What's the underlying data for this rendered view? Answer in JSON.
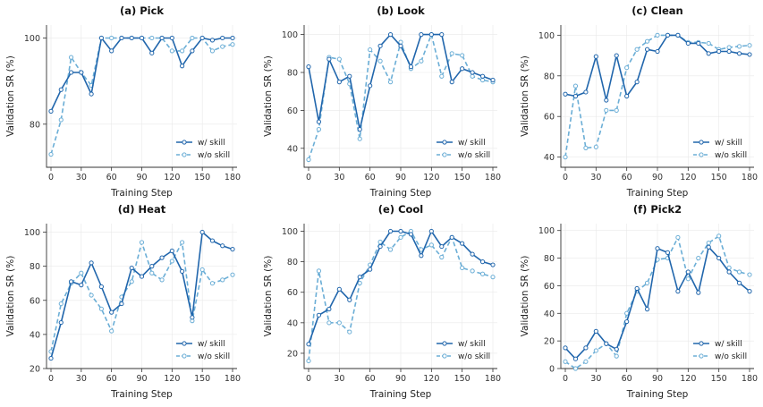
{
  "colors": {
    "with_skill": "#2166ac",
    "without_skill": "#6baed6"
  },
  "chart_data": [
    {
      "type": "line",
      "title": "(a)  Pick",
      "xlabel": "Training Step",
      "ylabel": "Validation SR (%)",
      "xlim": [
        0,
        180
      ],
      "ylim": [
        70,
        103
      ],
      "xticks": [
        0,
        30,
        60,
        90,
        120,
        150,
        180
      ],
      "yticks": [
        80,
        100
      ],
      "grid": true,
      "legend_position": "lower-right",
      "x": [
        0,
        10,
        20,
        30,
        40,
        50,
        60,
        70,
        80,
        90,
        100,
        110,
        120,
        130,
        140,
        150,
        160,
        170,
        180
      ],
      "series": [
        {
          "name": "w/ skill",
          "style": "solid",
          "values": [
            83,
            88,
            92,
            92,
            87,
            100,
            97,
            100,
            100,
            100,
            96.5,
            100,
            100,
            93.5,
            97,
            100,
            99.5,
            100,
            100
          ]
        },
        {
          "name": "w/o skill",
          "style": "dashed",
          "values": [
            73,
            81,
            95.5,
            92,
            89,
            100,
            100,
            100,
            100,
            100,
            100,
            100,
            97,
            97,
            100,
            100,
            97,
            98,
            98.5
          ]
        }
      ]
    },
    {
      "type": "line",
      "title": "(b)  Look",
      "xlabel": "Training Step",
      "ylabel": "Validation SR (%)",
      "xlim": [
        0,
        180
      ],
      "ylim": [
        30,
        105
      ],
      "xticks": [
        0,
        30,
        60,
        90,
        120,
        150,
        180
      ],
      "yticks": [
        40,
        60,
        80,
        100
      ],
      "grid": true,
      "legend_position": "lower-right",
      "x": [
        0,
        10,
        20,
        30,
        40,
        50,
        60,
        70,
        80,
        90,
        100,
        110,
        120,
        130,
        140,
        150,
        160,
        170,
        180
      ],
      "series": [
        {
          "name": "w/ skill",
          "style": "solid",
          "values": [
            83,
            54,
            87,
            75,
            78,
            50,
            73,
            94,
            100,
            94,
            83,
            100,
            100,
            100,
            75,
            82,
            80,
            78,
            76
          ]
        },
        {
          "name": "w/o skill",
          "style": "dashed",
          "values": [
            34,
            50,
            88,
            87,
            74,
            45,
            92,
            86,
            75,
            96,
            82,
            86,
            100,
            78,
            90,
            89,
            78,
            76,
            75
          ]
        }
      ]
    },
    {
      "type": "line",
      "title": "(c)  Clean",
      "xlabel": "Training Step",
      "ylabel": "Validation SR (%)",
      "xlim": [
        0,
        180
      ],
      "ylim": [
        35,
        105
      ],
      "xticks": [
        0,
        30,
        60,
        90,
        120,
        150,
        180
      ],
      "yticks": [
        40,
        60,
        80,
        100
      ],
      "grid": true,
      "legend_position": "lower-right",
      "x": [
        0,
        10,
        20,
        30,
        40,
        50,
        60,
        70,
        80,
        90,
        100,
        110,
        120,
        130,
        140,
        150,
        160,
        170,
        180
      ],
      "series": [
        {
          "name": "w/ skill",
          "style": "solid",
          "values": [
            71,
            70,
            72,
            89.5,
            68,
            90,
            70,
            77,
            93,
            92,
            100,
            100,
            96,
            96,
            91,
            92,
            92,
            91,
            90.5
          ]
        },
        {
          "name": "w/o skill",
          "style": "dashed",
          "values": [
            40,
            75,
            44.5,
            45,
            63,
            63,
            84,
            93,
            97,
            100,
            100,
            100,
            96.5,
            96.5,
            96,
            93,
            94,
            94.5,
            95
          ]
        }
      ]
    },
    {
      "type": "line",
      "title": "(d)  Heat",
      "xlabel": "Training Step",
      "ylabel": "Validation SR (%)",
      "xlim": [
        0,
        180
      ],
      "ylim": [
        20,
        105
      ],
      "xticks": [
        0,
        30,
        60,
        90,
        120,
        150,
        180
      ],
      "yticks": [
        20,
        40,
        60,
        80,
        100
      ],
      "grid": true,
      "legend_position": "lower-right",
      "x": [
        0,
        10,
        20,
        30,
        40,
        50,
        60,
        70,
        80,
        90,
        100,
        110,
        120,
        130,
        140,
        150,
        160,
        170,
        180
      ],
      "series": [
        {
          "name": "w/ skill",
          "style": "solid",
          "values": [
            26,
            47,
            71,
            69,
            82,
            68,
            53,
            58,
            79,
            74,
            80,
            85,
            89,
            77,
            50,
            100,
            95,
            92,
            90
          ]
        },
        {
          "name": "w/o skill",
          "style": "dashed",
          "values": [
            30,
            58,
            70,
            76,
            63,
            55,
            42,
            62,
            71,
            94,
            76,
            72,
            83,
            94,
            48,
            78,
            70,
            72,
            75
          ]
        }
      ]
    },
    {
      "type": "line",
      "title": "(e)  Cool",
      "xlabel": "Training Step",
      "ylabel": "Validation SR (%)",
      "xlim": [
        0,
        180
      ],
      "ylim": [
        10,
        105
      ],
      "xticks": [
        0,
        30,
        60,
        90,
        120,
        150,
        180
      ],
      "yticks": [
        20,
        40,
        60,
        80,
        100
      ],
      "grid": true,
      "legend_position": "lower-right",
      "x": [
        0,
        10,
        20,
        30,
        40,
        50,
        60,
        70,
        80,
        90,
        100,
        110,
        120,
        130,
        140,
        150,
        160,
        170,
        180
      ],
      "series": [
        {
          "name": "w/ skill",
          "style": "solid",
          "values": [
            26,
            45,
            49,
            62,
            55,
            70,
            75,
            90,
            100,
            100,
            98,
            84,
            100,
            90,
            96,
            92,
            85,
            80,
            78
          ]
        },
        {
          "name": "w/o skill",
          "style": "dashed",
          "values": [
            15,
            74,
            40,
            40,
            34,
            66,
            78,
            93,
            88,
            96,
            100,
            88,
            91,
            83,
            96,
            76,
            74,
            72,
            70
          ]
        }
      ]
    },
    {
      "type": "line",
      "title": "(f)  Pick2",
      "xlabel": "Training Step",
      "ylabel": "Validation SR (%)",
      "xlim": [
        0,
        180
      ],
      "ylim": [
        0,
        105
      ],
      "xticks": [
        0,
        30,
        60,
        90,
        120,
        150,
        180
      ],
      "yticks": [
        0,
        20,
        40,
        60,
        80,
        100
      ],
      "grid": true,
      "legend_position": "lower-right",
      "x": [
        0,
        10,
        20,
        30,
        40,
        50,
        60,
        70,
        80,
        90,
        100,
        110,
        120,
        130,
        140,
        150,
        160,
        170,
        180
      ],
      "series": [
        {
          "name": "w/ skill",
          "style": "solid",
          "values": [
            15,
            7,
            15,
            27,
            18,
            14,
            34,
            58,
            43,
            87,
            84,
            56,
            70,
            55,
            88,
            80,
            70,
            62,
            56
          ]
        },
        {
          "name": "w/o skill",
          "style": "dashed",
          "values": [
            5,
            0,
            5,
            13,
            18,
            9,
            40,
            56,
            62,
            79,
            80,
            95,
            65,
            80,
            91,
            96,
            73,
            70,
            68
          ]
        }
      ]
    }
  ]
}
